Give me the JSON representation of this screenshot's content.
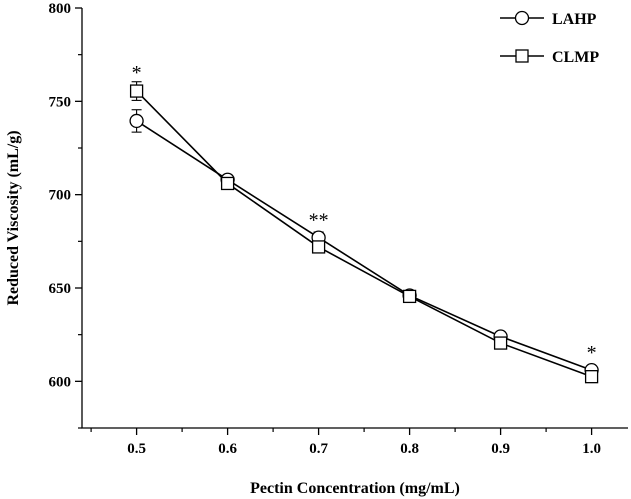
{
  "chart_data": {
    "type": "line",
    "xlabel": "Pectin Concentration (mg/mL)",
    "ylabel": "Reduced Viscosity (mL/g)",
    "x": [
      0.5,
      0.6,
      0.7,
      0.8,
      0.9,
      1.0
    ],
    "x_tick_labels": [
      "0.5",
      "0.6",
      "0.7",
      "0.8",
      "0.9",
      "1.0"
    ],
    "xlim": [
      0.44,
      1.04
    ],
    "ylim": [
      575,
      800
    ],
    "y_ticks": [
      600,
      650,
      700,
      750,
      800
    ],
    "y_tick_labels": [
      "600",
      "650",
      "700",
      "750",
      "800"
    ],
    "grid": false,
    "legend_position": "top-right",
    "series": [
      {
        "name": "LAHP",
        "marker": "circle",
        "values": [
          739.5,
          708,
          677,
          646,
          624,
          606
        ],
        "errors": [
          6,
          2.5,
          3,
          2,
          2.5,
          2
        ]
      },
      {
        "name": "CLMP",
        "marker": "square",
        "values": [
          755.5,
          706,
          672,
          645.5,
          620.5,
          602.5
        ],
        "errors": [
          5,
          2,
          2.5,
          3,
          2,
          2
        ]
      }
    ],
    "annotations": [
      {
        "text": "*",
        "x": 0.5,
        "y": 762
      },
      {
        "text": "**",
        "x": 0.7,
        "y": 683
      },
      {
        "text": "*",
        "x": 1.0,
        "y": 612
      }
    ],
    "colors": {
      "line": "#000000",
      "marker_fill": "#ffffff"
    }
  }
}
